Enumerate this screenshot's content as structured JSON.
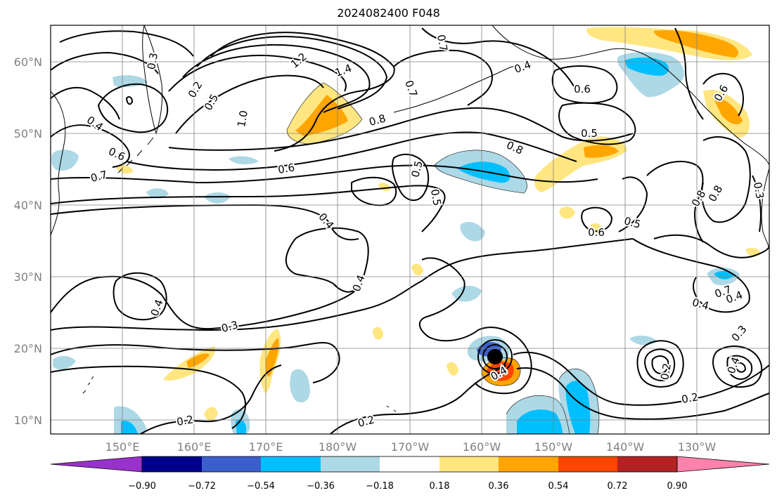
{
  "title": "2024082400 F048",
  "map": {
    "lat_ticks": [
      "60°N",
      "50°N",
      "40°N",
      "30°N",
      "20°N",
      "10°N"
    ],
    "lon_ticks": [
      "150°E",
      "160°E",
      "170°E",
      "180°W",
      "170°W",
      "160°W",
      "150°W",
      "140°W",
      "130°W"
    ],
    "marker": "tropical-cyclone-center",
    "contour_labels": [
      "1.2",
      "1.4",
      "0.3",
      "0.2",
      "0.5",
      "1.0",
      "0.7",
      "0.4",
      "0.6",
      "0.7",
      "0.8",
      "0.6",
      "0.7",
      "0.4",
      "0.5",
      "0.8",
      "0.5",
      "0.6",
      "0.5",
      "0.6",
      "0.8",
      "0.8",
      "0.3",
      "0.4",
      "0.4",
      "0.3",
      "0.4",
      "0.5",
      "0.6",
      "0.4",
      "0.7",
      "0.4",
      "0.3",
      "0.4",
      "0.2",
      "0.2",
      "0.2",
      "0.4",
      "0.2"
    ]
  },
  "colorbar": {
    "ticks": [
      "−0.90",
      "−0.72",
      "−0.54",
      "−0.36",
      "−0.18",
      "0.18",
      "0.36",
      "0.54",
      "0.72",
      "0.90"
    ],
    "colors": [
      "#9932cc",
      "#00008b",
      "#3a5fcd",
      "#00bfff",
      "#add8e6",
      "#ffffff",
      "#ffe680",
      "#ffa500",
      "#ff4500",
      "#b22222",
      "#ff82ab"
    ]
  }
}
